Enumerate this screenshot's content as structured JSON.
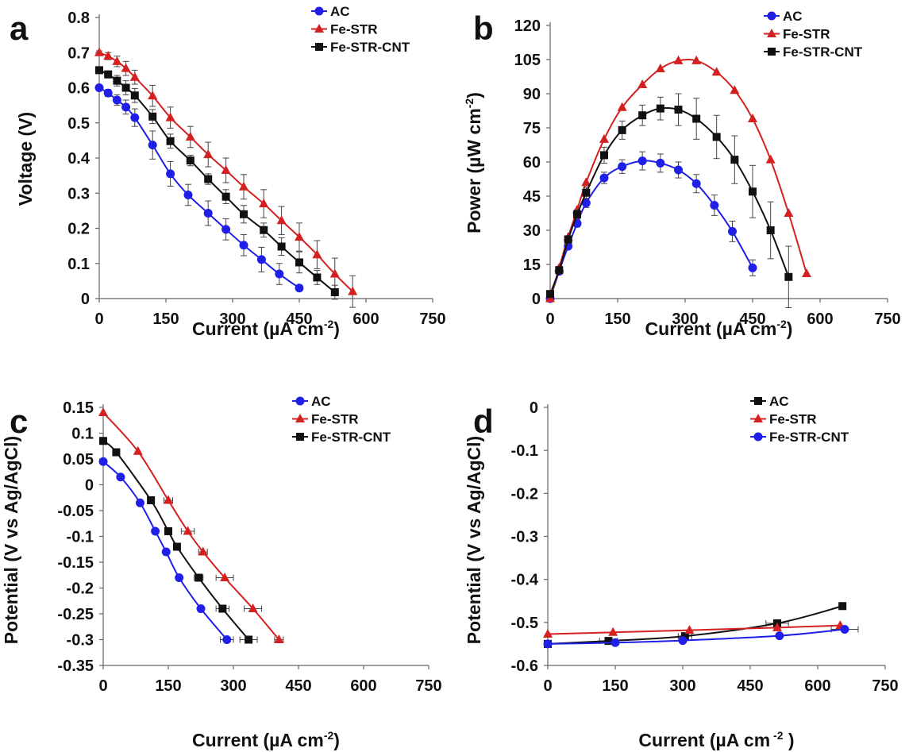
{
  "colors": {
    "AC": "#1f1fe8",
    "Fe-STR": "#d42020",
    "Fe-STR-CNT": "#111111"
  },
  "chart_data": [
    {
      "panel": "a",
      "type": "line",
      "xlabel_parts": [
        "Current (µA cm",
        "-2",
        ")"
      ],
      "ylabel_parts": [
        "Voltage (V)"
      ],
      "xlim": [
        0,
        750
      ],
      "ylim": [
        0,
        0.8
      ],
      "xticks": [
        0,
        150,
        300,
        450,
        600,
        750
      ],
      "yticks": [
        0,
        0.1,
        0.2,
        0.3,
        0.4,
        0.5,
        0.6,
        0.7,
        0.8
      ],
      "ytick_labels": [
        "0",
        "0.1",
        "0.2",
        "0.3",
        "0.4",
        "0.5",
        "0.6",
        "0.7",
        "0.8"
      ],
      "legend_position": "top-right",
      "grid": false,
      "series": [
        {
          "name": "AC",
          "color_key": "AC",
          "marker": "circle",
          "x": [
            0,
            20,
            40,
            60,
            80,
            120,
            160,
            200,
            245,
            285,
            325,
            365,
            405,
            450
          ],
          "y": [
            0.6,
            0.585,
            0.565,
            0.545,
            0.515,
            0.437,
            0.355,
            0.295,
            0.243,
            0.197,
            0.152,
            0.111,
            0.07,
            0.03
          ],
          "err": [
            0.005,
            0.01,
            0.015,
            0.02,
            0.025,
            0.04,
            0.035,
            0.03,
            0.035,
            0.03,
            0.03,
            0.035,
            0.03,
            0.0
          ]
        },
        {
          "name": "Fe-STR",
          "color_key": "Fe-STR",
          "marker": "triangle",
          "x": [
            0,
            20,
            40,
            60,
            80,
            120,
            160,
            205,
            245,
            285,
            325,
            370,
            410,
            450,
            490,
            530,
            570
          ],
          "y": [
            0.7,
            0.69,
            0.675,
            0.655,
            0.63,
            0.577,
            0.515,
            0.46,
            0.41,
            0.365,
            0.318,
            0.27,
            0.222,
            0.175,
            0.125,
            0.07,
            0.02
          ],
          "err": [
            0.005,
            0.01,
            0.015,
            0.02,
            0.02,
            0.03,
            0.03,
            0.03,
            0.035,
            0.035,
            0.035,
            0.04,
            0.04,
            0.04,
            0.04,
            0.045,
            0.045
          ]
        },
        {
          "name": "Fe-STR-CNT",
          "color_key": "Fe-STR-CNT",
          "marker": "square",
          "x": [
            0,
            20,
            40,
            60,
            80,
            120,
            160,
            205,
            245,
            285,
            325,
            370,
            410,
            450,
            490,
            530
          ],
          "y": [
            0.65,
            0.638,
            0.62,
            0.6,
            0.578,
            0.518,
            0.448,
            0.393,
            0.34,
            0.29,
            0.24,
            0.195,
            0.148,
            0.103,
            0.06,
            0.018
          ],
          "err": [
            0.005,
            0.01,
            0.015,
            0.02,
            0.02,
            0.02,
            0.02,
            0.015,
            0.015,
            0.02,
            0.025,
            0.02,
            0.025,
            0.03,
            0.02,
            0.02
          ]
        }
      ]
    },
    {
      "panel": "b",
      "type": "line",
      "xlabel_parts": [
        "Current (µA cm",
        "-2",
        ")"
      ],
      "ylabel_parts": [
        "Power (µW cm",
        "-2",
        ")"
      ],
      "xlim": [
        0,
        750
      ],
      "ylim": [
        0,
        120
      ],
      "xticks": [
        0,
        150,
        300,
        450,
        600,
        750
      ],
      "yticks": [
        0,
        15,
        30,
        45,
        60,
        75,
        90,
        105,
        120
      ],
      "ytick_labels": [
        "0",
        "15",
        "30",
        "45",
        "60",
        "75",
        "90",
        "105",
        "120"
      ],
      "legend_position": "top-right",
      "grid": false,
      "series": [
        {
          "name": "AC",
          "color_key": "AC",
          "marker": "circle",
          "x": [
            0,
            20,
            40,
            60,
            80,
            120,
            160,
            205,
            245,
            285,
            325,
            365,
            405,
            450
          ],
          "y": [
            0,
            12,
            23,
            33,
            42,
            53,
            58,
            60.5,
            59.5,
            56.5,
            50.5,
            41,
            29.5,
            13.5
          ],
          "err": [
            0,
            0.5,
            1,
            1.5,
            2,
            2.5,
            3,
            4,
            4,
            3.5,
            4,
            4.5,
            4.5,
            3.5
          ]
        },
        {
          "name": "Fe-STR",
          "color_key": "Fe-STR",
          "marker": "triangle",
          "x": [
            0,
            20,
            40,
            60,
            80,
            120,
            160,
            205,
            245,
            285,
            325,
            370,
            410,
            450,
            490,
            530,
            570
          ],
          "y": [
            0,
            13.5,
            27,
            39,
            51,
            70,
            84,
            94,
            101,
            104.5,
            104.5,
            99.5,
            91.5,
            79,
            61,
            37.5,
            11
          ],
          "err": [
            0,
            0,
            0,
            0,
            0,
            0,
            0,
            0,
            0,
            0,
            0,
            0,
            0,
            0,
            0,
            0,
            0
          ]
        },
        {
          "name": "Fe-STR-CNT",
          "color_key": "Fe-STR-CNT",
          "marker": "square",
          "x": [
            0,
            20,
            40,
            60,
            80,
            120,
            160,
            205,
            245,
            285,
            325,
            370,
            410,
            450,
            490,
            530
          ],
          "y": [
            2,
            12.5,
            26,
            37,
            46.5,
            63,
            74,
            80.5,
            83.5,
            83,
            79,
            71,
            61,
            47,
            30,
            9.5
          ],
          "err": [
            0.5,
            1,
            1.5,
            2,
            2.5,
            3.5,
            4,
            4.5,
            5,
            7,
            9,
            9.5,
            10.5,
            11.5,
            12.5,
            13.5
          ]
        }
      ]
    },
    {
      "panel": "c",
      "type": "line",
      "xlabel_parts": [
        "Current (µA cm",
        "-2",
        ")"
      ],
      "ylabel_parts": [
        "Potential (V vs Ag/AgCl)"
      ],
      "xlim": [
        0,
        750
      ],
      "ylim": [
        -0.35,
        0.15
      ],
      "xticks": [
        0,
        150,
        300,
        450,
        600,
        750
      ],
      "yticks": [
        -0.35,
        -0.3,
        -0.25,
        -0.2,
        -0.15,
        -0.1,
        -0.05,
        0,
        0.05,
        0.1,
        0.15
      ],
      "ytick_labels": [
        "-0.35",
        "-0.3",
        "-0.25",
        "-0.2",
        "-0.15",
        "-0.1",
        "-0.05",
        "0",
        "0.05",
        "0.1",
        "0.15"
      ],
      "legend_position": "top-right",
      "grid": false,
      "series": [
        {
          "name": "AC",
          "color_key": "AC",
          "marker": "circle",
          "x": [
            0,
            40,
            85,
            120,
            145,
            175,
            225,
            285
          ],
          "y": [
            0.045,
            0.015,
            -0.035,
            -0.09,
            -0.13,
            -0.18,
            -0.24,
            -0.3
          ],
          "xerr": [
            0,
            0,
            0,
            0,
            0,
            0,
            0,
            15
          ]
        },
        {
          "name": "Fe-STR",
          "color_key": "Fe-STR",
          "marker": "triangle",
          "x": [
            0,
            80,
            150,
            195,
            230,
            280,
            345,
            405
          ],
          "y": [
            0.14,
            0.065,
            -0.03,
            -0.09,
            -0.13,
            -0.18,
            -0.24,
            -0.3
          ],
          "xerr": [
            0,
            0,
            10,
            15,
            10,
            20,
            20,
            10
          ]
        },
        {
          "name": "Fe-STR-CNT",
          "color_key": "Fe-STR-CNT",
          "marker": "square",
          "x": [
            0,
            30,
            110,
            150,
            170,
            220,
            275,
            335
          ],
          "y": [
            0.085,
            0.063,
            -0.03,
            -0.09,
            -0.12,
            -0.18,
            -0.24,
            -0.3
          ],
          "xerr": [
            0,
            0,
            0,
            0,
            5,
            10,
            15,
            20
          ]
        }
      ]
    },
    {
      "panel": "d",
      "type": "line",
      "xlabel_parts": [
        "Current (µA cm",
        " -2",
        " )"
      ],
      "ylabel_parts": [
        "Potential (V vs Ag/AgCl)"
      ],
      "xlim": [
        0,
        750
      ],
      "ylim": [
        -0.6,
        0
      ],
      "xticks": [
        0,
        150,
        300,
        450,
        600,
        750
      ],
      "yticks": [
        -0.6,
        -0.5,
        -0.4,
        -0.3,
        -0.2,
        -0.1,
        0
      ],
      "ytick_labels": [
        "-0.6",
        "-0.5",
        "-0.4",
        "-0.3",
        "-0.2",
        "-0.1",
        "0"
      ],
      "legend_position": "top-right",
      "grid": false,
      "series": [
        {
          "name": "AC",
          "color_key": "Fe-STR-CNT",
          "marker": "square",
          "x": [
            0,
            135,
            305,
            510,
            655
          ],
          "y": [
            -0.55,
            -0.543,
            -0.532,
            -0.502,
            -0.462
          ],
          "xerr": [
            0,
            20,
            15,
            25,
            0
          ]
        },
        {
          "name": "Fe-STR",
          "color_key": "Fe-STR",
          "marker": "triangle",
          "x": [
            0,
            145,
            315,
            510,
            650
          ],
          "y": [
            -0.527,
            -0.523,
            -0.518,
            -0.512,
            -0.507
          ],
          "xerr": [
            0,
            0,
            0,
            0,
            0
          ]
        },
        {
          "name": "Fe-STR-CNT",
          "color_key": "AC",
          "marker": "circle",
          "x": [
            0,
            150,
            300,
            515,
            660
          ],
          "y": [
            -0.55,
            -0.547,
            -0.542,
            -0.531,
            -0.516
          ],
          "xerr": [
            0,
            0,
            0,
            0,
            30
          ]
        }
      ]
    }
  ]
}
